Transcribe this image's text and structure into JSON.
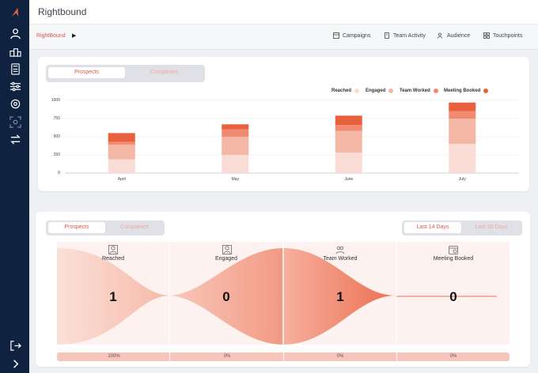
{
  "app": {
    "title": "Rightbound"
  },
  "breadcrumb": {
    "label": "RightBound"
  },
  "nav": {
    "campaigns": "Campaigns",
    "team_activity": "Team Activity",
    "audience": "Audience",
    "touchpoints": "Touchpoints"
  },
  "top_card": {
    "toggle": {
      "prospects": "Prospects",
      "companies": "Companies"
    },
    "legend": {
      "reached": "Reached",
      "engaged": "Engaged",
      "team_worked": "Team Worked",
      "meeting_booked": "Meeting Booked"
    }
  },
  "funnel": {
    "toggle": {
      "prospects": "Prospects",
      "companies": "Companies"
    },
    "range": {
      "last14": "Last 14 Days",
      "last30": "Last 30 Days"
    },
    "stages": [
      {
        "label": "Reached",
        "count": "1",
        "pct": "100%"
      },
      {
        "label": "Engaged",
        "count": "0",
        "pct": "0%"
      },
      {
        "label": "Team Worked",
        "count": "1",
        "pct": "0%"
      },
      {
        "label": "Meeting Booked",
        "count": "0",
        "pct": "0%"
      }
    ]
  },
  "colors": {
    "reached": "#f8dcd5",
    "engaged": "#f4b6a5",
    "team_worked": "#f08a70",
    "meeting_booked": "#e8603c",
    "accent": "#e0574a",
    "sidebar": "#0f2340"
  },
  "chart_data": {
    "type": "bar",
    "stacked": true,
    "categories": [
      "April",
      "May",
      "June",
      "July"
    ],
    "ylim": [
      0,
      1000
    ],
    "yticks": [
      0,
      250,
      500,
      750,
      1000
    ],
    "series": [
      {
        "name": "Reached",
        "values": [
          190,
          250,
          280,
          400
        ]
      },
      {
        "name": "Engaged",
        "values": [
          200,
          250,
          300,
          350
        ]
      },
      {
        "name": "Team Worked",
        "values": [
          40,
          100,
          80,
          100
        ]
      },
      {
        "name": "Meeting Booked",
        "values": [
          120,
          70,
          130,
          120
        ]
      }
    ],
    "legend_position": "top-right",
    "grid": true
  }
}
